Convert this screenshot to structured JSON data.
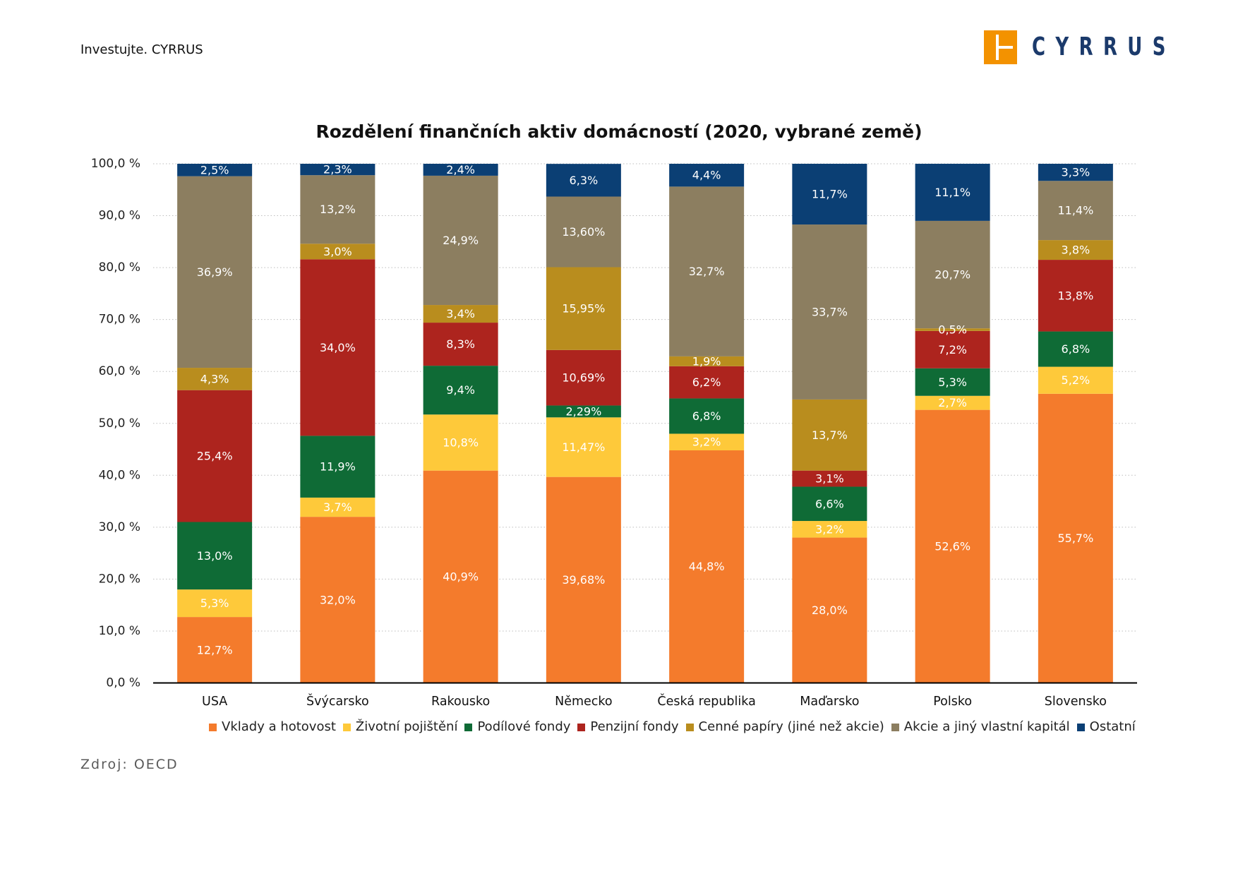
{
  "header": {
    "tagline": "Investujte. CYRRUS"
  },
  "logo": {
    "text": "CYRRUS",
    "icon": "cyrrus-logo-icon",
    "accent_color": "#F39200",
    "text_color": "#1B3A6B"
  },
  "source": "Zdroj: OECD",
  "chart_data": {
    "type": "bar",
    "stacked": true,
    "title": "Rozdělení finančních aktiv domácností (2020, vybrané země)",
    "categories": [
      "USA",
      "Švýcarsko",
      "Rakousko",
      "Německo",
      "Česká republika",
      "Maďarsko",
      "Polsko",
      "Slovensko"
    ],
    "ylim": [
      0,
      100
    ],
    "yticks": [
      0,
      10,
      20,
      30,
      40,
      50,
      60,
      70,
      80,
      90,
      100
    ],
    "ytick_labels": [
      "0,0 %",
      "10,0 %",
      "20,0 %",
      "30,0 %",
      "40,0 %",
      "50,0 %",
      "60,0 %",
      "70,0 %",
      "80,0 %",
      "90,0 %",
      "100,0 %"
    ],
    "grid": true,
    "legend": "bottom",
    "series": [
      {
        "name": "Vklady a hotovost",
        "color": "#F47B2C",
        "values": [
          12.7,
          32.0,
          40.9,
          39.68,
          44.8,
          28.0,
          52.6,
          55.7
        ],
        "labels": [
          "12,7%",
          "32,0%",
          "40,9%",
          "39,68%",
          "44,8%",
          "28,0%",
          "52,6%",
          "55,7%"
        ]
      },
      {
        "name": "Životní pojištění",
        "color": "#FEC93A",
        "values": [
          5.3,
          3.7,
          10.8,
          11.47,
          3.2,
          3.2,
          2.7,
          5.2
        ],
        "labels": [
          "5,3%",
          "3,7%",
          "10,8%",
          "11,47%",
          "3,2%",
          "3,2%",
          "2,7%",
          "5,2%"
        ]
      },
      {
        "name": "Podílové fondy",
        "color": "#0F6B36",
        "values": [
          13.0,
          11.9,
          9.4,
          2.29,
          6.8,
          6.6,
          5.3,
          6.8
        ],
        "labels": [
          "13,0%",
          "11,9%",
          "9,4%",
          "2,29%",
          "6,8%",
          "6,6%",
          "5,3%",
          "6,8%"
        ]
      },
      {
        "name": "Penzijní fondy",
        "color": "#AD241E",
        "values": [
          25.4,
          34.0,
          8.3,
          10.69,
          6.2,
          3.1,
          7.2,
          13.8
        ],
        "labels": [
          "25,4%",
          "34,0%",
          "8,3%",
          "10,69%",
          "6,2%",
          "3,1%",
          "7,2%",
          "13,8%"
        ]
      },
      {
        "name": "Cenné papíry (jiné než akcie)",
        "color": "#B98D1E",
        "values": [
          4.3,
          3.0,
          3.4,
          15.95,
          1.9,
          13.7,
          0.5,
          3.8
        ],
        "labels": [
          "4,3%",
          "3,0%",
          "3,4%",
          "15,95%",
          "1,9%",
          "13,7%",
          "0,5%",
          "3,8%"
        ]
      },
      {
        "name": "Akcie a jiný vlastní kapitál",
        "color": "#8C7E60",
        "values": [
          36.9,
          13.2,
          24.9,
          13.6,
          32.7,
          33.7,
          20.7,
          11.4
        ],
        "labels": [
          "36,9%",
          "13,2%",
          "24,9%",
          "13,60%",
          "32,7%",
          "33,7%",
          "20,7%",
          "11,4%"
        ]
      },
      {
        "name": "Ostatní",
        "color": "#0B3F74",
        "values": [
          2.5,
          2.3,
          2.4,
          6.3,
          4.4,
          11.7,
          11.1,
          3.3
        ],
        "labels": [
          "2,5%",
          "2,3%",
          "2,4%",
          "6,3%",
          "4,4%",
          "11,7%",
          "11,1%",
          "3,3%"
        ]
      }
    ]
  }
}
